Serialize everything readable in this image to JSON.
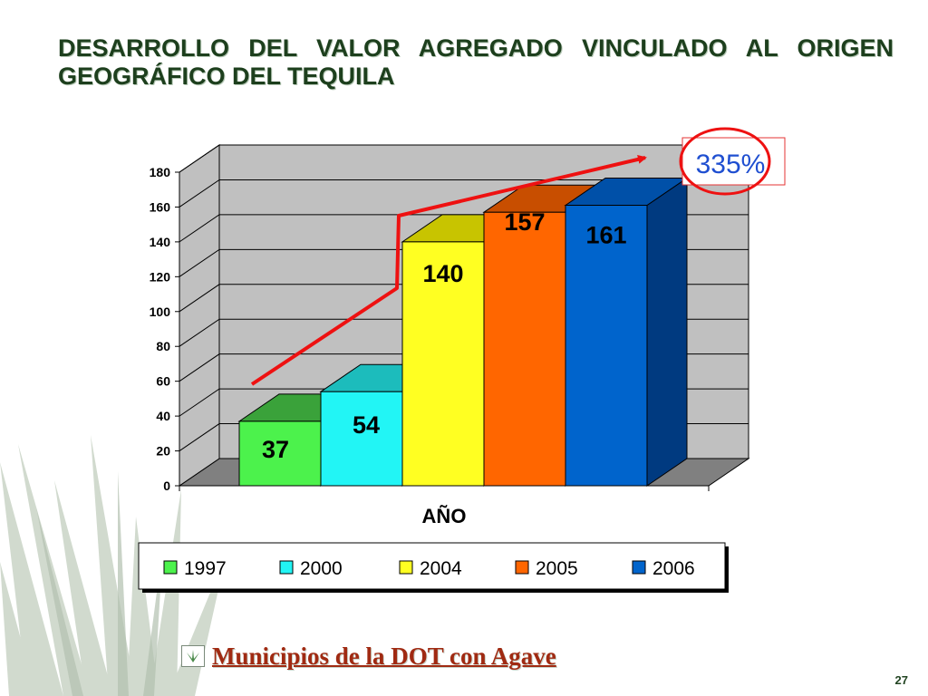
{
  "slide": {
    "title": "DESARROLLO DEL VALOR AGREGADO VINCULADO AL ORIGEN GEOGRÁFICO DEL TEQUILA",
    "footer_link": "Municipios de la DOT con Agave",
    "page_number": "27"
  },
  "chart_data": {
    "type": "bar",
    "title": "",
    "xlabel": "AÑO",
    "ylabel": "",
    "ylim": [
      0,
      180
    ],
    "yticks": [
      0,
      20,
      40,
      60,
      80,
      100,
      120,
      140,
      160,
      180
    ],
    "grid": true,
    "legend_position": "bottom",
    "series": [
      {
        "name": "1997",
        "values": [
          37
        ],
        "color": "#4cf24c",
        "top_color": "#3aa23a",
        "side_color": "#2f8a2f"
      },
      {
        "name": "2000",
        "values": [
          54
        ],
        "color": "#22f5f5",
        "top_color": "#1cbcbc",
        "side_color": "#15a0a0"
      },
      {
        "name": "2004",
        "values": [
          140
        ],
        "color": "#ffff22",
        "top_color": "#c8c400",
        "side_color": "#b0a800"
      },
      {
        "name": "2005",
        "values": [
          157
        ],
        "color": "#ff6600",
        "top_color": "#c84e00",
        "side_color": "#a84000"
      },
      {
        "name": "2006",
        "values": [
          161
        ],
        "color": "#0064cc",
        "top_color": "#0050a8",
        "side_color": "#003a80"
      }
    ],
    "data_labels": [
      "37",
      "54",
      "140",
      "157",
      "161"
    ],
    "annotation": {
      "text": "335%",
      "color": "#1f4fd1",
      "arrow_color": "#ee1111"
    },
    "colors": {
      "grid": "#000000",
      "wall": "#c0c0c0",
      "floor": "#808080"
    }
  }
}
